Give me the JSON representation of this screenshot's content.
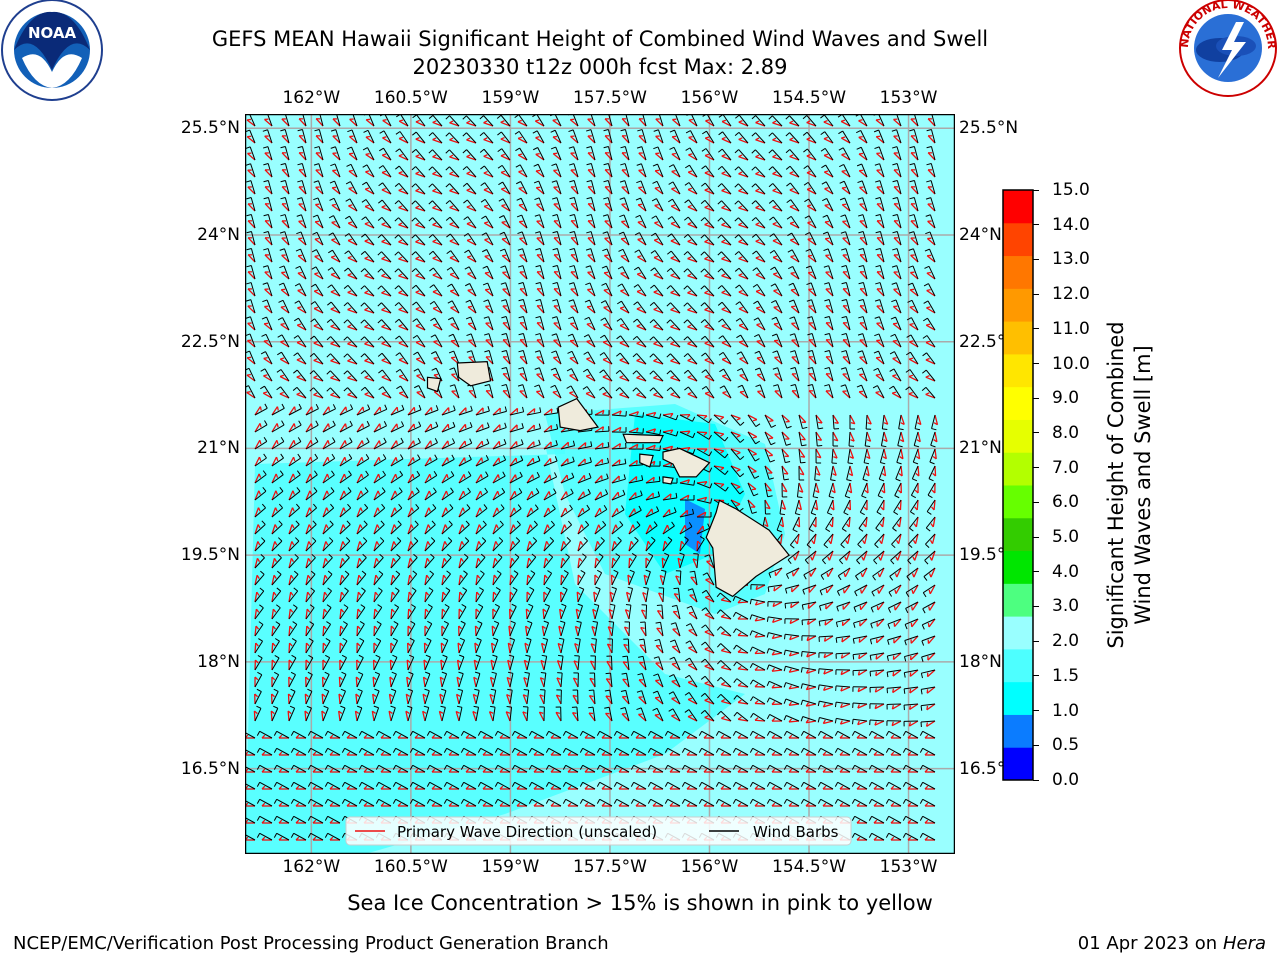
{
  "title": {
    "line1": "GEFS MEAN Hawaii Significant Height of Combined Wind Waves and Swell",
    "line2": "20230330 t12z 000h fcst   Max: 2.89"
  },
  "map": {
    "lon_ticks": [
      "162°W",
      "160.5°W",
      "159°W",
      "157.5°W",
      "156°W",
      "154.5°W",
      "153°W"
    ],
    "lat_ticks": [
      "25.5°N",
      "24°N",
      "22.5°N",
      "21°N",
      "19.5°N",
      "18°N",
      "16.5°N"
    ],
    "lon_range": [
      -163.0,
      -152.3
    ],
    "lat_range": [
      15.3,
      25.7
    ],
    "land_color": "#efebdc",
    "ocean_color": "#99ffff",
    "legend": {
      "wave_label": "Primary Wave Direction (unscaled)",
      "barb_label": "Wind Barbs",
      "wave_color": "#ee1111",
      "barb_color": "#000000"
    }
  },
  "colorbar": {
    "label_line1": "Significant Height of Combined",
    "label_line2": "Wind Waves and Swell [m]",
    "ticks": [
      "15.0",
      "14.0",
      "13.0",
      "12.0",
      "11.0",
      "10.0",
      "9.0",
      "8.0",
      "7.0",
      "6.0",
      "5.0",
      "4.0",
      "3.0",
      "2.0",
      "1.5",
      "1.0",
      "0.5",
      "0.0"
    ],
    "colors": [
      "#0000ff",
      "#0b7cff",
      "#00ffff",
      "#4dffff",
      "#99ffff",
      "#4dff80",
      "#00e600",
      "#33cc00",
      "#66ff00",
      "#b3ff00",
      "#e6ff00",
      "#ffff00",
      "#ffe600",
      "#ffbf00",
      "#ff9900",
      "#ff7700",
      "#ff4400",
      "#ff0000"
    ]
  },
  "subtitle": "Sea Ice Concentration > 15% is shown in pink to yellow",
  "footer": {
    "left": "NCEP/EMC/Verification Post Processing Product Generation Branch",
    "date": "01 Apr 2023 on ",
    "host": "Hera"
  },
  "logos": {
    "noaa_text": "NOAA",
    "nws_text": "NATIONAL WEATHER SERVICE"
  }
}
